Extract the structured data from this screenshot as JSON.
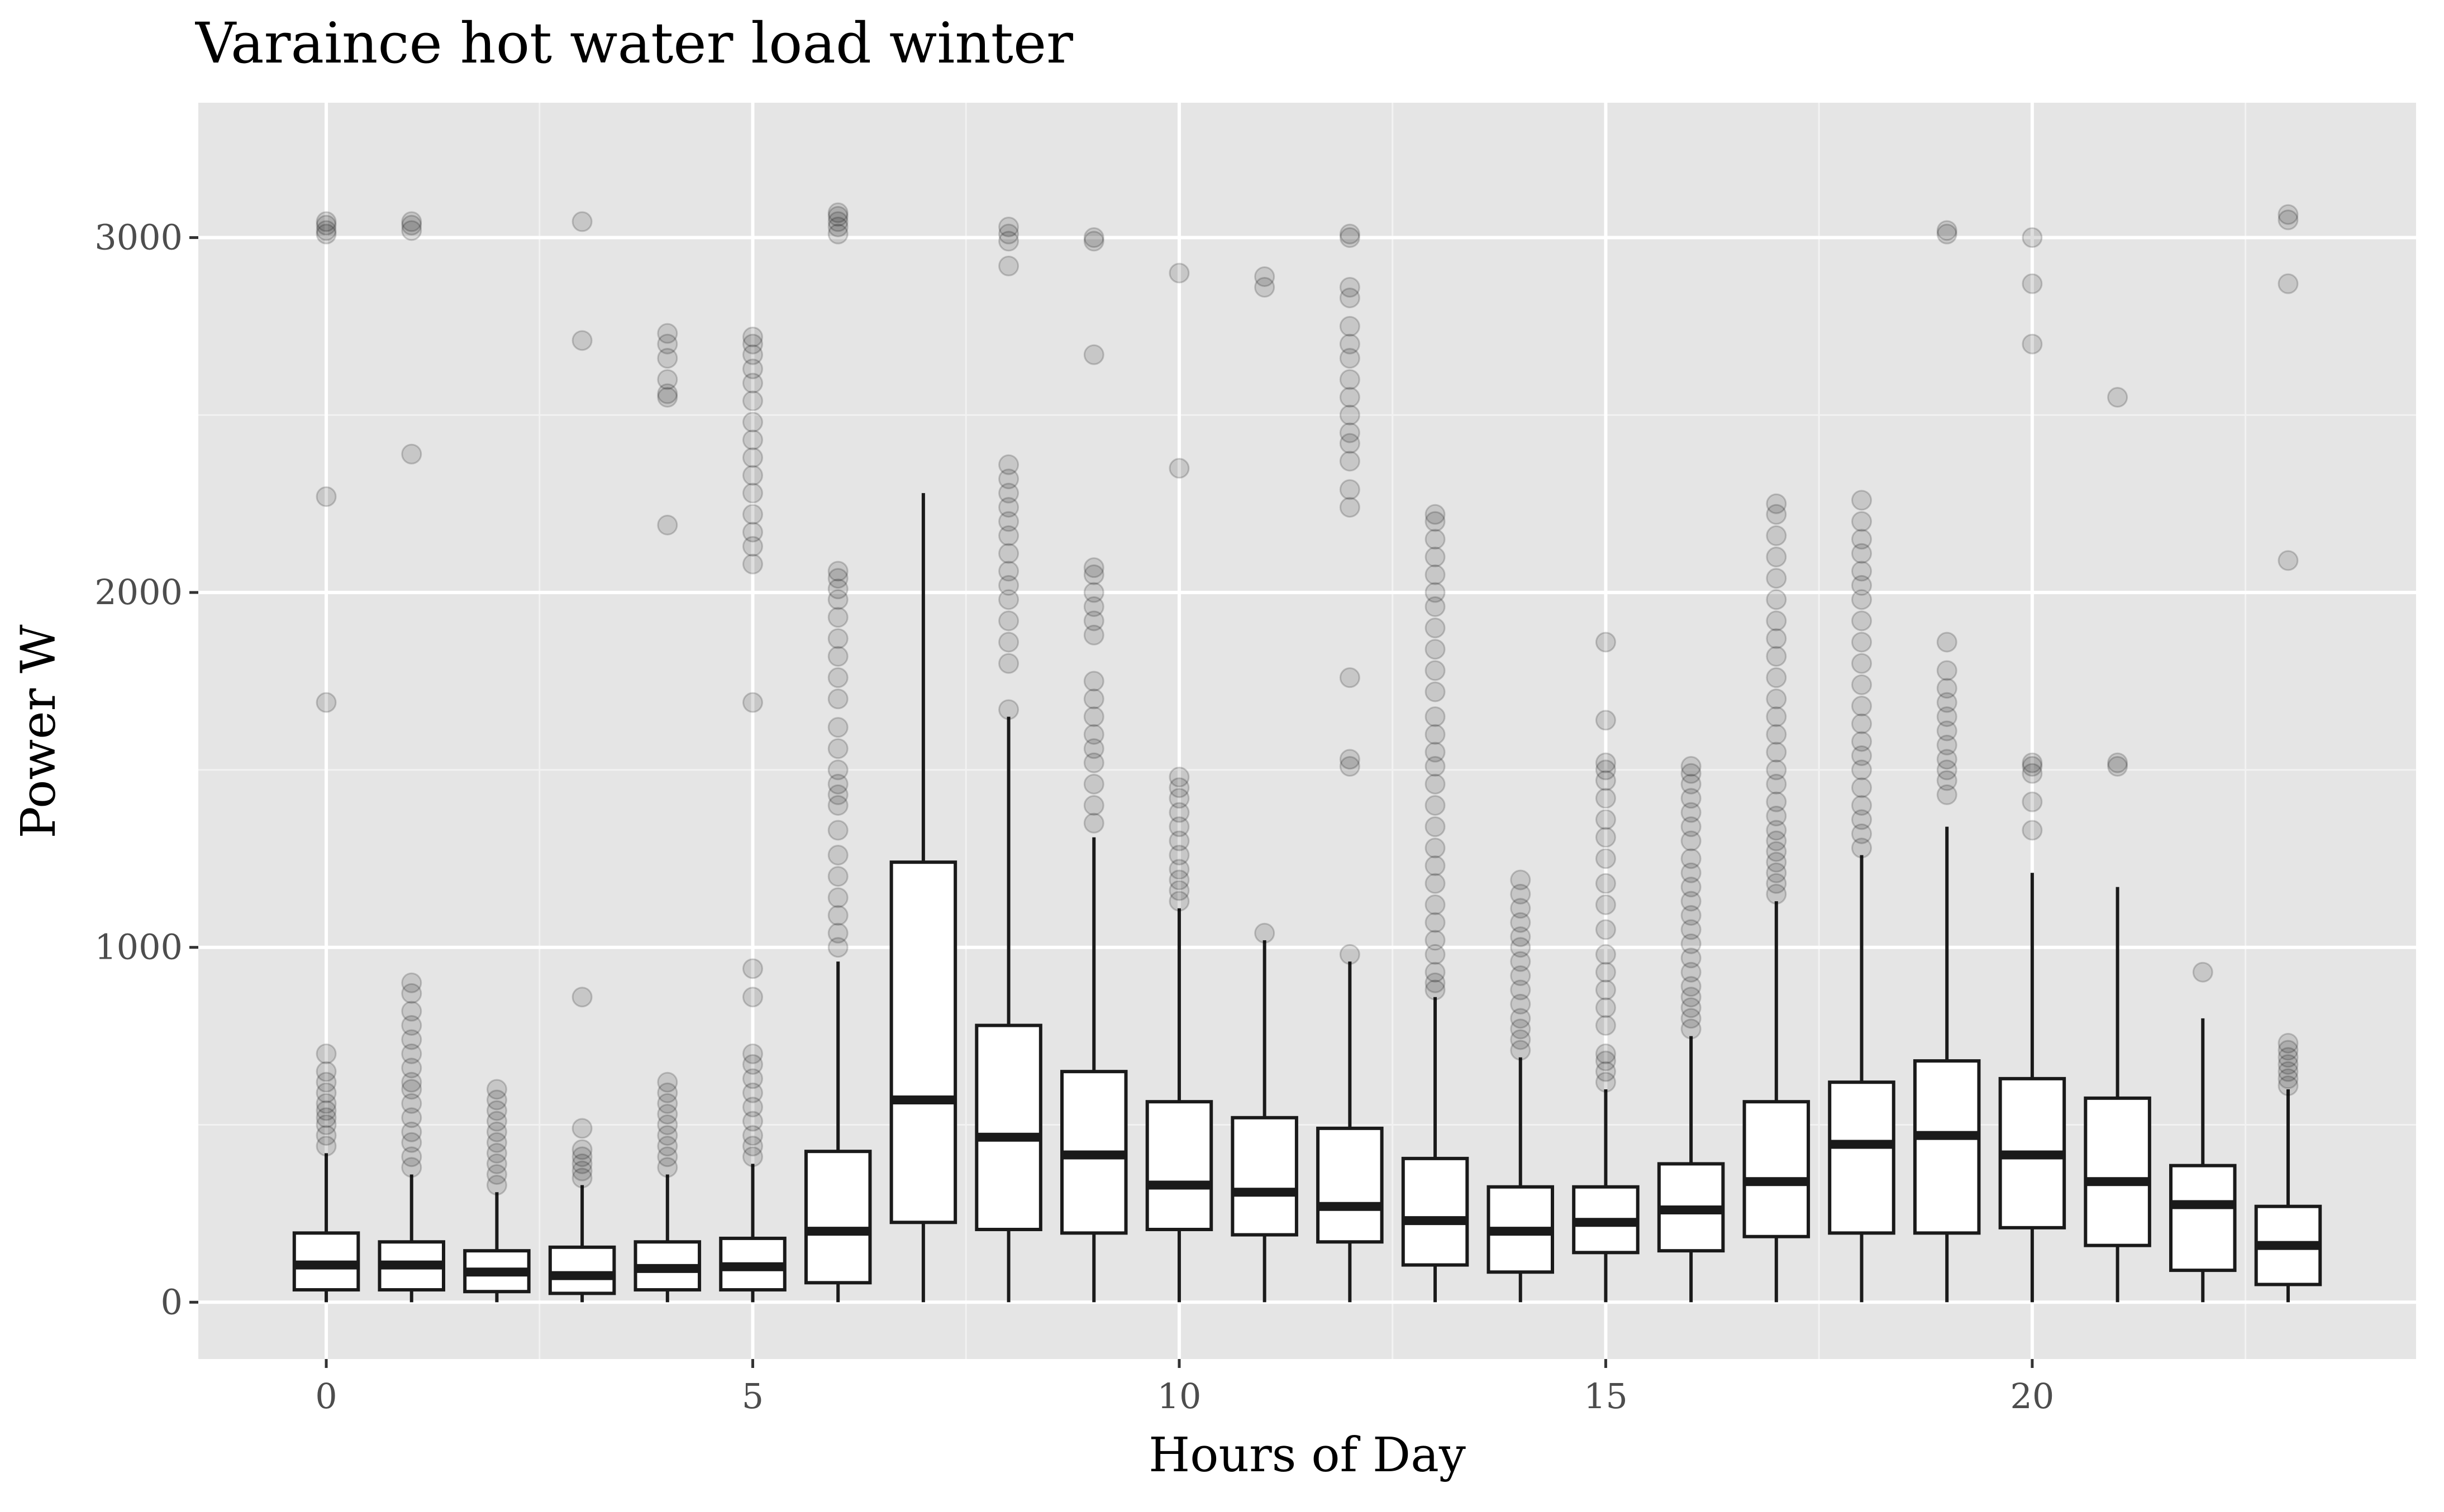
{
  "chart_data": {
    "type": "boxplot",
    "title": "Varaince hot water load winter",
    "xlabel": "Hours of Day",
    "ylabel": "Power W",
    "xlim": [
      -1.5,
      24.5
    ],
    "ylim": [
      -160,
      3380
    ],
    "x_ticks": [
      0,
      5,
      10,
      15,
      20
    ],
    "y_ticks": [
      0,
      1000,
      2000,
      3000
    ],
    "grid": true,
    "legend": "none",
    "colors": {
      "panel": "#e5e5e5",
      "grid": "#ffffff",
      "box_fill": "#ffffff",
      "box_line": "#1a1a1a",
      "outlier": "#000000"
    },
    "boxes": [
      {
        "hour": 0,
        "lower": 0,
        "q1": 35,
        "median": 105,
        "q3": 195,
        "upper": 420,
        "outliers": [
          440,
          470,
          500,
          520,
          540,
          560,
          590,
          620,
          650,
          700,
          1690,
          2270,
          3010,
          3020,
          3035,
          3045
        ]
      },
      {
        "hour": 1,
        "lower": 0,
        "q1": 35,
        "median": 105,
        "q3": 170,
        "upper": 360,
        "outliers": [
          380,
          410,
          450,
          480,
          520,
          560,
          600,
          620,
          660,
          700,
          740,
          780,
          820,
          870,
          900,
          2390,
          3020,
          3035,
          3045
        ]
      },
      {
        "hour": 2,
        "lower": 0,
        "q1": 30,
        "median": 85,
        "q3": 145,
        "upper": 310,
        "outliers": [
          330,
          360,
          390,
          420,
          450,
          480,
          510,
          540,
          570,
          600
        ]
      },
      {
        "hour": 3,
        "lower": 0,
        "q1": 25,
        "median": 75,
        "q3": 155,
        "upper": 330,
        "outliers": [
          350,
          370,
          390,
          410,
          430,
          490,
          860,
          2710,
          3045
        ]
      },
      {
        "hour": 4,
        "lower": 0,
        "q1": 35,
        "median": 95,
        "q3": 170,
        "upper": 360,
        "outliers": [
          380,
          410,
          440,
          470,
          500,
          530,
          560,
          590,
          620,
          2190,
          2550,
          2560,
          2600,
          2660,
          2700,
          2730
        ]
      },
      {
        "hour": 5,
        "lower": 0,
        "q1": 35,
        "median": 100,
        "q3": 180,
        "upper": 390,
        "outliers": [
          410,
          440,
          470,
          510,
          550,
          590,
          630,
          670,
          700,
          860,
          940,
          1690,
          2080,
          2130,
          2170,
          2220,
          2280,
          2330,
          2380,
          2430,
          2480,
          2540,
          2590,
          2630,
          2670,
          2700,
          2720
        ]
      },
      {
        "hour": 6,
        "lower": 0,
        "q1": 55,
        "median": 200,
        "q3": 425,
        "upper": 960,
        "outliers": [
          1000,
          1040,
          1090,
          1140,
          1200,
          1260,
          1330,
          1400,
          1430,
          1460,
          1500,
          1560,
          1620,
          1700,
          1760,
          1820,
          1870,
          1930,
          1980,
          2010,
          2040,
          2060,
          3010,
          3030,
          3045,
          3060,
          3070
        ]
      },
      {
        "hour": 7,
        "lower": 0,
        "q1": 225,
        "median": 570,
        "q3": 1240,
        "upper": 2280,
        "outliers": []
      },
      {
        "hour": 8,
        "lower": 0,
        "q1": 205,
        "median": 465,
        "q3": 780,
        "upper": 1650,
        "outliers": [
          1670,
          1800,
          1860,
          1920,
          1980,
          2020,
          2060,
          2110,
          2160,
          2200,
          2240,
          2280,
          2320,
          2360,
          2920,
          2990,
          3010,
          3030
        ]
      },
      {
        "hour": 9,
        "lower": 0,
        "q1": 195,
        "median": 415,
        "q3": 650,
        "upper": 1310,
        "outliers": [
          1350,
          1400,
          1460,
          1520,
          1560,
          1600,
          1650,
          1700,
          1750,
          1880,
          1920,
          1960,
          2000,
          2050,
          2070,
          2670,
          2990,
          3000
        ]
      },
      {
        "hour": 10,
        "lower": 0,
        "q1": 205,
        "median": 330,
        "q3": 565,
        "upper": 1110,
        "outliers": [
          1130,
          1160,
          1190,
          1220,
          1260,
          1300,
          1340,
          1380,
          1420,
          1450,
          1480,
          2350,
          2900
        ]
      },
      {
        "hour": 11,
        "lower": 0,
        "q1": 190,
        "median": 310,
        "q3": 520,
        "upper": 1020,
        "outliers": [
          1040,
          2860,
          2890
        ]
      },
      {
        "hour": 12,
        "lower": 0,
        "q1": 170,
        "median": 270,
        "q3": 490,
        "upper": 960,
        "outliers": [
          980,
          1510,
          1530,
          1760,
          2240,
          2290,
          2370,
          2420,
          2450,
          2500,
          2550,
          2600,
          2660,
          2700,
          2750,
          2830,
          2860,
          3000,
          3010
        ]
      },
      {
        "hour": 13,
        "lower": 0,
        "q1": 105,
        "median": 230,
        "q3": 405,
        "upper": 860,
        "outliers": [
          880,
          900,
          930,
          980,
          1020,
          1070,
          1120,
          1180,
          1230,
          1280,
          1340,
          1400,
          1460,
          1510,
          1550,
          1600,
          1650,
          1720,
          1780,
          1840,
          1900,
          1960,
          2000,
          2050,
          2100,
          2150,
          2200,
          2220
        ]
      },
      {
        "hour": 14,
        "lower": 0,
        "q1": 85,
        "median": 200,
        "q3": 325,
        "upper": 690,
        "outliers": [
          710,
          740,
          770,
          800,
          840,
          880,
          920,
          960,
          1000,
          1030,
          1070,
          1110,
          1150,
          1190
        ]
      },
      {
        "hour": 15,
        "lower": 0,
        "q1": 140,
        "median": 225,
        "q3": 325,
        "upper": 600,
        "outliers": [
          620,
          650,
          680,
          700,
          780,
          830,
          880,
          930,
          980,
          1050,
          1120,
          1180,
          1250,
          1310,
          1360,
          1420,
          1470,
          1500,
          1520,
          1640,
          1860
        ]
      },
      {
        "hour": 16,
        "lower": 0,
        "q1": 145,
        "median": 260,
        "q3": 390,
        "upper": 750,
        "outliers": [
          770,
          800,
          830,
          860,
          890,
          930,
          970,
          1010,
          1050,
          1090,
          1130,
          1170,
          1210,
          1250,
          1300,
          1340,
          1380,
          1420,
          1460,
          1490,
          1510
        ]
      },
      {
        "hour": 17,
        "lower": 0,
        "q1": 185,
        "median": 340,
        "q3": 565,
        "upper": 1130,
        "outliers": [
          1150,
          1180,
          1210,
          1240,
          1270,
          1300,
          1330,
          1370,
          1410,
          1460,
          1500,
          1550,
          1600,
          1650,
          1700,
          1760,
          1820,
          1870,
          1920,
          1980,
          2040,
          2100,
          2160,
          2220,
          2250
        ]
      },
      {
        "hour": 18,
        "lower": 0,
        "q1": 195,
        "median": 445,
        "q3": 620,
        "upper": 1260,
        "outliers": [
          1280,
          1320,
          1360,
          1400,
          1450,
          1500,
          1540,
          1580,
          1630,
          1680,
          1740,
          1800,
          1860,
          1920,
          1980,
          2020,
          2060,
          2110,
          2150,
          2200,
          2260
        ]
      },
      {
        "hour": 19,
        "lower": 0,
        "q1": 195,
        "median": 470,
        "q3": 680,
        "upper": 1340,
        "outliers": [
          1430,
          1470,
          1500,
          1530,
          1570,
          1610,
          1650,
          1690,
          1730,
          1780,
          1860,
          3010,
          3020
        ]
      },
      {
        "hour": 20,
        "lower": 0,
        "q1": 210,
        "median": 415,
        "q3": 630,
        "upper": 1210,
        "outliers": [
          1330,
          1410,
          1490,
          1510,
          1520,
          2700,
          2870,
          3000
        ]
      },
      {
        "hour": 21,
        "lower": 0,
        "q1": 160,
        "median": 340,
        "q3": 575,
        "upper": 1170,
        "outliers": [
          1510,
          1520,
          2550
        ]
      },
      {
        "hour": 22,
        "lower": 0,
        "q1": 90,
        "median": 275,
        "q3": 385,
        "upper": 800,
        "outliers": [
          930
        ]
      },
      {
        "hour": 23,
        "lower": 0,
        "q1": 50,
        "median": 160,
        "q3": 270,
        "upper": 600,
        "outliers": [
          610,
          630,
          650,
          670,
          690,
          710,
          730,
          2090,
          2870,
          3050,
          3065
        ]
      }
    ]
  }
}
